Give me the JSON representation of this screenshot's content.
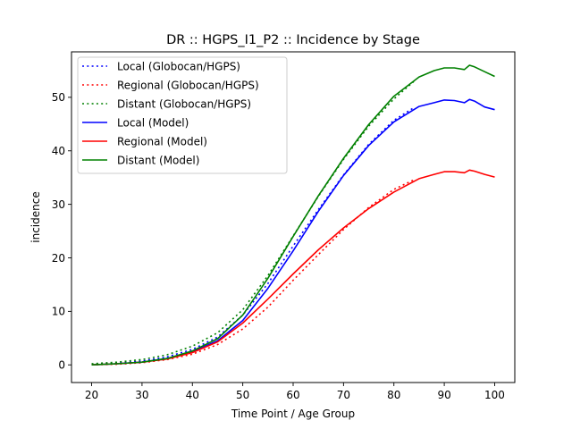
{
  "chart_data": {
    "type": "line",
    "title": "DR :: HGPS_I1_P2 ::  Incidence by Stage",
    "xlabel": "Time Point / Age Group",
    "ylabel": "incidence",
    "xlim": [
      16,
      104
    ],
    "ylim": [
      -3.3,
      58.5
    ],
    "xticks": [
      20,
      30,
      40,
      50,
      60,
      70,
      80,
      90,
      100
    ],
    "yticks": [
      0,
      10,
      20,
      30,
      40,
      50
    ],
    "grid": false,
    "legend_position": "top-left",
    "series": [
      {
        "name": "Local (Globocan/HGPS)",
        "color": "#0000ff",
        "style": "dotted",
        "x": [
          20,
          25,
          30,
          35,
          40,
          45,
          50,
          55,
          60,
          65,
          70,
          75,
          80,
          84
        ],
        "y": [
          0.1,
          0.3,
          0.7,
          1.5,
          2.9,
          5.2,
          9.3,
          15.2,
          22.2,
          29.0,
          35.5,
          41.2,
          45.7,
          48.1
        ]
      },
      {
        "name": "Regional (Globocan/HGPS)",
        "color": "#ff0000",
        "style": "dotted",
        "x": [
          20,
          25,
          30,
          35,
          40,
          45,
          50,
          55,
          60,
          65,
          70,
          75,
          80,
          84
        ],
        "y": [
          0.0,
          0.1,
          0.4,
          1.0,
          2.0,
          3.8,
          6.7,
          10.8,
          15.8,
          20.6,
          25.3,
          29.4,
          32.8,
          34.6
        ]
      },
      {
        "name": "Distant (Globocan/HGPS)",
        "color": "#008000",
        "style": "dotted",
        "x": [
          20,
          25,
          30,
          35,
          40,
          45,
          50,
          55,
          60,
          65,
          70,
          75,
          80,
          84
        ],
        "y": [
          0.2,
          0.5,
          1.0,
          1.9,
          3.5,
          6.0,
          10.3,
          16.7,
          24.1,
          31.5,
          38.4,
          44.6,
          49.7,
          53.0
        ]
      },
      {
        "name": "Local (Model)",
        "color": "#0000ff",
        "style": "solid",
        "x": [
          20,
          25,
          30,
          35,
          40,
          45,
          50,
          55,
          60,
          65,
          70,
          75,
          80,
          85,
          88,
          90,
          92,
          94,
          95,
          96,
          98,
          100
        ],
        "y": [
          0.0,
          0.2,
          0.5,
          1.2,
          2.5,
          4.5,
          8.3,
          14.3,
          21.3,
          28.7,
          35.4,
          41.0,
          45.4,
          48.3,
          49.0,
          49.5,
          49.4,
          49.0,
          49.6,
          49.3,
          48.2,
          47.7
        ]
      },
      {
        "name": "Regional (Model)",
        "color": "#ff0000",
        "style": "solid",
        "x": [
          20,
          25,
          30,
          35,
          40,
          45,
          50,
          55,
          60,
          65,
          70,
          75,
          80,
          85,
          88,
          90,
          92,
          94,
          95,
          96,
          98,
          100
        ],
        "y": [
          0.0,
          0.2,
          0.5,
          1.1,
          2.3,
          4.3,
          7.8,
          12.3,
          17.0,
          21.5,
          25.6,
          29.2,
          32.3,
          34.8,
          35.6,
          36.1,
          36.1,
          35.9,
          36.4,
          36.2,
          35.6,
          35.1
        ]
      },
      {
        "name": "Distant (Model)",
        "color": "#008000",
        "style": "solid",
        "x": [
          20,
          25,
          30,
          35,
          40,
          45,
          50,
          55,
          60,
          65,
          70,
          75,
          80,
          85,
          88,
          90,
          92,
          94,
          95,
          96,
          98,
          100
        ],
        "y": [
          0.0,
          0.2,
          0.5,
          1.2,
          2.6,
          4.9,
          9.3,
          16.2,
          24.0,
          31.6,
          38.6,
          44.9,
          50.2,
          53.8,
          55.0,
          55.5,
          55.5,
          55.2,
          56.0,
          55.7,
          54.8,
          53.9
        ]
      }
    ]
  }
}
